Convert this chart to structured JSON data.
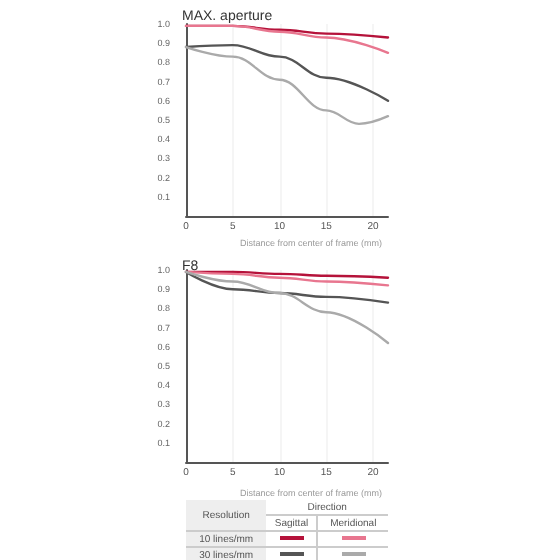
{
  "chart_data": [
    {
      "type": "line",
      "title": "MAX. aperture",
      "xlabel": "Distance from center of frame (mm)",
      "x": [
        0,
        5,
        10,
        15,
        21.6
      ],
      "series": [
        {
          "color": "#b5123a",
          "values": [
            0.99,
            0.99,
            0.97,
            0.95,
            0.93
          ]
        },
        {
          "color": "#e8768f",
          "values": [
            0.99,
            0.99,
            0.96,
            0.93,
            0.85
          ]
        },
        {
          "color": "#555555",
          "values": [
            0.88,
            0.89,
            0.83,
            0.72,
            0.6
          ]
        },
        {
          "color": "#aaaaaa",
          "x": [
            0,
            5,
            10,
            15,
            18.5,
            21.6
          ],
          "values": [
            0.88,
            0.83,
            0.71,
            0.55,
            0.48,
            0.52
          ]
        }
      ],
      "xlim": [
        0,
        21.6
      ],
      "xticks": [
        0,
        5,
        10,
        15,
        20
      ],
      "ylim": [
        0,
        1
      ],
      "yticks": [
        0.1,
        0.2,
        0.3,
        0.4,
        0.5,
        0.6,
        0.7,
        0.8,
        0.9,
        {
          "value": 1,
          "label": "1.0"
        }
      ],
      "grid": "x",
      "marker": "none",
      "line_style": "solid"
    },
    {
      "type": "line",
      "title": "F8",
      "xlabel": "Distance from center of frame (mm)",
      "x": [
        0,
        5,
        10,
        15,
        21.6
      ],
      "series": [
        {
          "color": "#b5123a",
          "values": [
            0.99,
            0.99,
            0.98,
            0.97,
            0.96
          ]
        },
        {
          "color": "#e8768f",
          "values": [
            0.99,
            0.98,
            0.96,
            0.94,
            0.92
          ]
        },
        {
          "color": "#555555",
          "values": [
            0.99,
            0.9,
            0.88,
            0.86,
            0.83
          ]
        },
        {
          "color": "#aaaaaa",
          "values": [
            0.99,
            0.94,
            0.88,
            0.78,
            0.62
          ]
        }
      ],
      "xlim": [
        0,
        21.6
      ],
      "xticks": [
        0,
        5,
        10,
        15,
        20
      ],
      "ylim": [
        0,
        1
      ],
      "yticks": [
        0.1,
        0.2,
        0.3,
        0.4,
        0.5,
        0.6,
        0.7,
        0.8,
        0.9,
        {
          "value": 1,
          "label": "1.0"
        }
      ],
      "grid": "x",
      "marker": "none",
      "line_style": "solid"
    },
    {
      "type": "other",
      "annotations": [
        "Resolution",
        "Direction",
        "Sagittal",
        "Meridional",
        "10 lines/mm",
        "30 lines/mm"
      ]
    }
  ]
}
